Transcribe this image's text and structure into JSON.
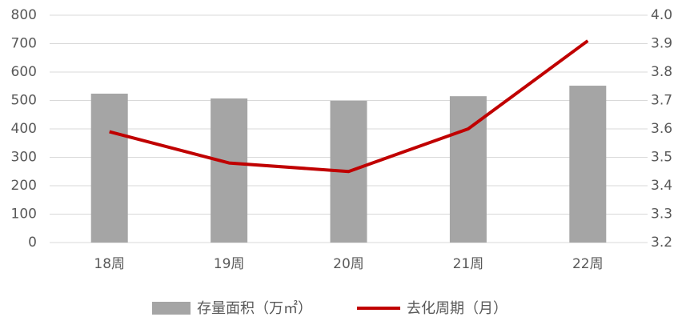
{
  "chart_data": {
    "type": "bar",
    "categories": [
      "18周",
      "19周",
      "20周",
      "21周",
      "22周"
    ],
    "series": [
      {
        "name": "存量面积（万㎡）",
        "type": "bar",
        "color": "#a5a5a5",
        "values": [
          524,
          507,
          499,
          515,
          552
        ]
      },
      {
        "name": "去化周期（月）",
        "type": "line",
        "color": "#c00000",
        "axis": "y2",
        "values": [
          3.59,
          3.48,
          3.45,
          3.6,
          3.91
        ]
      }
    ],
    "ylim": [
      0,
      800
    ],
    "yticks": [
      0,
      100,
      200,
      300,
      400,
      500,
      600,
      700,
      800
    ],
    "y2lim": [
      3.2,
      4
    ],
    "y2ticks": [
      3.2,
      3.3,
      3.4,
      3.5,
      3.6,
      3.7,
      3.8,
      3.9,
      {
        "value": 4,
        "label": "4.0"
      }
    ],
    "grid": true,
    "legend": "bottom"
  }
}
